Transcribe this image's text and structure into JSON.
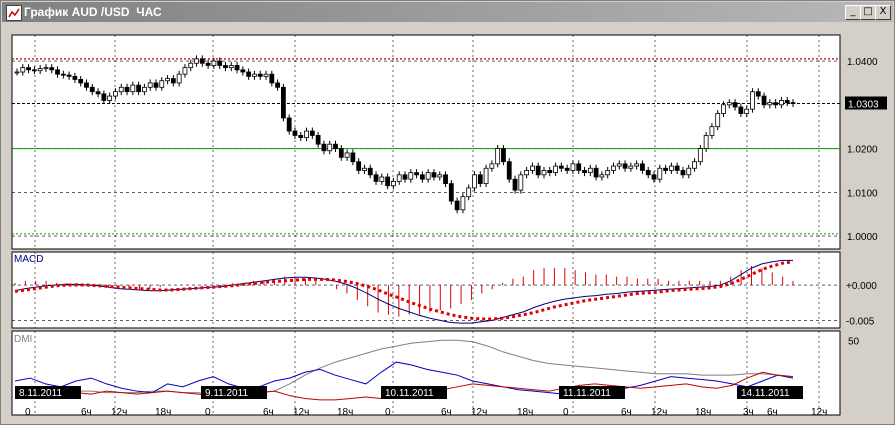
{
  "window": {
    "title": "График AUD /USD  ЧАС",
    "minimize": "_",
    "maximize": "□",
    "close": "X"
  },
  "price_panel": {
    "ticks": [
      {
        "label": "1.0400",
        "v": 1.04
      },
      {
        "label": "1.0200",
        "v": 1.02
      },
      {
        "label": "1.0100",
        "v": 1.01
      },
      {
        "label": "1.0000",
        "v": 1.0
      }
    ],
    "current": {
      "label": "1.0303",
      "v": 1.0303
    },
    "resistance": 1.0405,
    "support_level": 1.02,
    "lower_level": 1.0005,
    "ylim": [
      0.9975,
      1.0455
    ]
  },
  "macd_panel": {
    "name": "MACD",
    "ticks": [
      {
        "label": "+0.000",
        "v": 0
      },
      {
        "label": "-0.005",
        "v": -0.005
      }
    ],
    "ylim": [
      -0.0058,
      0.0044
    ]
  },
  "dmi_panel": {
    "name": "DMI",
    "ticks": [
      {
        "label": "50",
        "v": 50
      }
    ],
    "ylim": [
      0,
      55
    ]
  },
  "date_labels": [
    "8.11.2011",
    "9.11.2011",
    "10.11.2011",
    "11.11.2011",
    "14.11.2011"
  ],
  "hour_labels": [
    "0",
    "6ч",
    "12ч",
    "18ч",
    "0",
    "6ч",
    "12ч",
    "18ч",
    "0",
    "6ч",
    "12ч",
    "18ч",
    "0",
    "6ч",
    "12ч",
    "18ч",
    "3ч",
    "6ч",
    "12ч"
  ],
  "colors": {
    "plot_bg": "#ffffff",
    "candle": "#000000",
    "resistance": "#c00000",
    "support": "#00a000",
    "macd_line": "#000080",
    "signal": "#e00000",
    "adx": "#808080",
    "di_plus": "#0000c0",
    "di_minus": "#c00000"
  },
  "chart_data": {
    "type": "candlestick",
    "title": "",
    "ylabel": "",
    "closes": [
      1.0375,
      1.0385,
      1.038,
      1.0378,
      1.0383,
      1.0385,
      1.038,
      1.037,
      1.0368,
      1.0365,
      1.0358,
      1.035,
      1.034,
      1.033,
      1.0325,
      1.031,
      1.032,
      1.033,
      1.034,
      1.033,
      1.0345,
      1.033,
      1.034,
      1.035,
      1.034,
      1.0355,
      1.036,
      1.035,
      1.037,
      1.0385,
      1.0395,
      1.0405,
      1.0395,
      1.039,
      1.04,
      1.039,
      1.0385,
      1.039,
      1.038,
      1.0375,
      1.0365,
      1.037,
      1.0365,
      1.037,
      1.035,
      1.034,
      1.027,
      1.024,
      1.023,
      1.0225,
      1.024,
      1.023,
      1.021,
      1.0195,
      1.021,
      1.02,
      1.018,
      1.019,
      1.017,
      1.015,
      1.0155,
      1.014,
      1.0125,
      1.0135,
      1.0115,
      1.0125,
      1.014,
      1.013,
      1.0145,
      1.014,
      1.013,
      1.0145,
      1.0135,
      1.014,
      1.012,
      1.008,
      1.006,
      1.009,
      1.011,
      1.014,
      1.012,
      1.0155,
      1.0165,
      1.02,
      1.017,
      1.013,
      1.0105,
      1.014,
      1.015,
      1.016,
      1.014,
      1.015,
      1.0145,
      1.016,
      1.0155,
      1.015,
      1.0165,
      1.015,
      1.0145,
      1.0155,
      1.0135,
      1.014,
      1.015,
      1.016,
      1.0165,
      1.0155,
      1.016,
      1.0165,
      1.015,
      1.014,
      1.013,
      1.0155,
      1.015,
      1.016,
      1.015,
      1.014,
      1.0155,
      1.017,
      1.02,
      1.023,
      1.025,
      1.028,
      1.03,
      1.0305,
      1.0295,
      1.028,
      1.029,
      1.033,
      1.032,
      1.03,
      1.0305,
      1.03,
      1.031,
      1.0305,
      1.0303
    ],
    "macd": [
      -0.0008,
      -0.0005,
      -0.0003,
      -0.0001,
      0.0,
      0.0001,
      0.0001,
      0.0,
      -0.0001,
      -0.0003,
      -0.0005,
      -0.0006,
      -0.0007,
      -0.0008,
      -0.0008,
      -0.0007,
      -0.0006,
      -0.0005,
      -0.0004,
      -0.0003,
      -0.0002,
      0.0,
      0.0002,
      0.0004,
      0.0006,
      0.0008,
      0.001,
      0.0011,
      0.0011,
      0.001,
      0.0008,
      0.0005,
      0.0001,
      -0.0005,
      -0.0012,
      -0.002,
      -0.0027,
      -0.0033,
      -0.0038,
      -0.0043,
      -0.0047,
      -0.005,
      -0.0053,
      -0.0054,
      -0.0054,
      -0.0052,
      -0.005,
      -0.0046,
      -0.0042,
      -0.0038,
      -0.0032,
      -0.0027,
      -0.0023,
      -0.002,
      -0.0018,
      -0.0016,
      -0.0015,
      -0.0013,
      -0.0012,
      -0.001,
      -0.0009,
      -0.0008,
      -0.0007,
      -0.0006,
      -0.0005,
      -0.0004,
      -0.0003,
      -0.0002,
      0.0,
      0.0006,
      0.0015,
      0.0024,
      0.003,
      0.0033,
      0.0035,
      0.0035
    ],
    "macd_signal": [
      -0.0009,
      -0.0007,
      -0.0005,
      -0.0003,
      -0.0001,
      0.0,
      0.0,
      0.0,
      -0.0001,
      -0.0002,
      -0.0003,
      -0.0004,
      -0.0005,
      -0.0006,
      -0.0007,
      -0.0007,
      -0.0006,
      -0.0005,
      -0.0004,
      -0.0003,
      -0.0002,
      -0.0001,
      0.0001,
      0.0002,
      0.0004,
      0.0005,
      0.0006,
      0.0007,
      0.0008,
      0.0008,
      0.0008,
      0.0007,
      0.0005,
      0.0002,
      -0.0002,
      -0.0007,
      -0.0013,
      -0.0018,
      -0.0024,
      -0.0029,
      -0.0034,
      -0.0038,
      -0.0042,
      -0.0045,
      -0.0047,
      -0.0048,
      -0.0048,
      -0.0047,
      -0.0045,
      -0.0042,
      -0.0039,
      -0.0035,
      -0.0031,
      -0.0028,
      -0.0025,
      -0.0022,
      -0.002,
      -0.0018,
      -0.0016,
      -0.0014,
      -0.0012,
      -0.0011,
      -0.001,
      -0.0008,
      -0.0007,
      -0.0006,
      -0.0005,
      -0.0004,
      -0.0002,
      0.0002,
      0.0008,
      0.0015,
      0.0022,
      0.0027,
      0.0031,
      0.0033
    ],
    "adx": [
      18,
      17,
      16,
      16,
      15,
      15,
      14,
      14,
      14,
      15,
      15,
      14,
      14,
      13,
      13,
      13,
      14,
      15,
      20,
      26,
      31,
      35,
      38,
      41,
      44,
      46,
      48,
      49,
      50,
      50,
      49,
      46,
      42,
      39,
      36,
      34,
      33,
      32,
      31,
      30,
      29,
      28,
      27,
      27,
      27,
      26,
      26,
      26,
      27,
      27,
      26,
      25
    ],
    "di_plus": [
      22,
      24,
      20,
      18,
      22,
      24,
      20,
      17,
      15,
      14,
      20,
      18,
      22,
      25,
      20,
      17,
      18,
      22,
      24,
      28,
      30,
      26,
      23,
      20,
      28,
      35,
      33,
      30,
      28,
      26,
      22,
      20,
      18,
      16,
      15,
      14,
      13,
      14,
      15,
      16,
      17,
      19,
      22,
      25,
      24,
      23,
      22,
      20,
      18,
      22,
      26,
      24
    ],
    "di_minus": [
      14,
      15,
      16,
      15,
      14,
      13,
      15,
      14,
      13,
      14,
      15,
      14,
      13,
      12,
      14,
      13,
      14,
      15,
      12,
      10,
      9,
      9,
      10,
      11,
      10,
      10,
      12,
      14,
      16,
      18,
      20,
      19,
      18,
      17,
      16,
      15,
      17,
      19,
      20,
      19,
      18,
      17,
      18,
      19,
      20,
      18,
      17,
      19,
      24,
      28,
      26,
      25
    ]
  }
}
